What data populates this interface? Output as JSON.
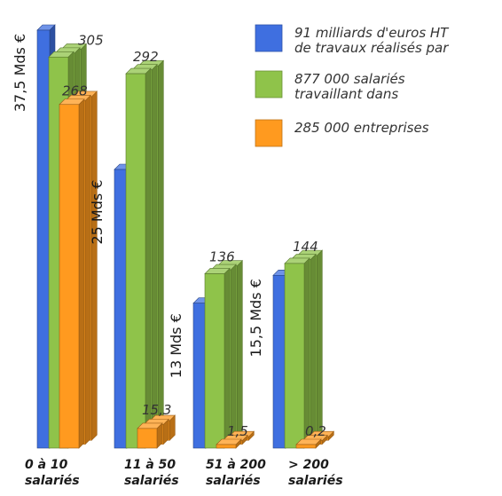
{
  "colors": {
    "blue": "#3f6fe0",
    "green": "#8fc34a",
    "orange": "#ff9a1f"
  },
  "legend": [
    {
      "color_key": "blue",
      "lines": [
        "91 milliards d'euros HT",
        "de travaux réalisés par"
      ]
    },
    {
      "color_key": "green",
      "lines": [
        "877 000 salariés",
        "travaillant dans"
      ]
    },
    {
      "color_key": "orange",
      "lines": [
        "285 000 entreprises"
      ]
    }
  ],
  "chart_data": {
    "type": "bar",
    "categories": [
      [
        "0 à 10",
        "salariés"
      ],
      [
        "11 à 50",
        "salariés"
      ],
      [
        "51 à 200",
        "salariés"
      ],
      [
        "> 200",
        "salariés"
      ]
    ],
    "series": [
      {
        "key": "blue",
        "values": [
          37.5,
          25,
          13,
          15.5
        ],
        "labels": [
          "37,5 Mds €",
          "25 Mds €",
          "13 Mds €",
          "15,5 Mds €"
        ]
      },
      {
        "key": "green",
        "values": [
          305,
          292,
          136,
          144
        ],
        "labels": [
          "305",
          "292",
          "136",
          "144"
        ]
      },
      {
        "key": "orange",
        "values": [
          268,
          15.3,
          1.5,
          0.2
        ],
        "labels": [
          "268",
          "15,3",
          "1,5",
          "0,2"
        ]
      }
    ]
  }
}
